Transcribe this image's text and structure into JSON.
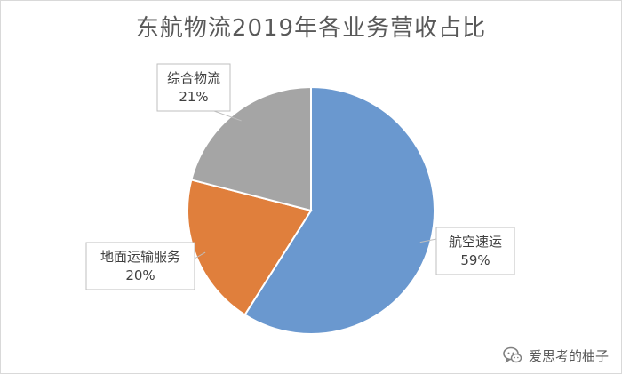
{
  "chart_data": {
    "type": "pie",
    "title": "东航物流2019年各业务营收占比",
    "categories": [
      "航空速运",
      "地面运输服务",
      "综合物流"
    ],
    "values": [
      59,
      20,
      21
    ],
    "labels": [
      "59%",
      "20%",
      "21%"
    ],
    "colors": [
      "#6a98cf",
      "#e07f3c",
      "#a5a5a5"
    ],
    "legend": "none",
    "start_angle_deg": 0,
    "direction": "clockwise"
  },
  "watermark": {
    "text": "爱思考的柚子",
    "icon": "wechat-icon"
  }
}
